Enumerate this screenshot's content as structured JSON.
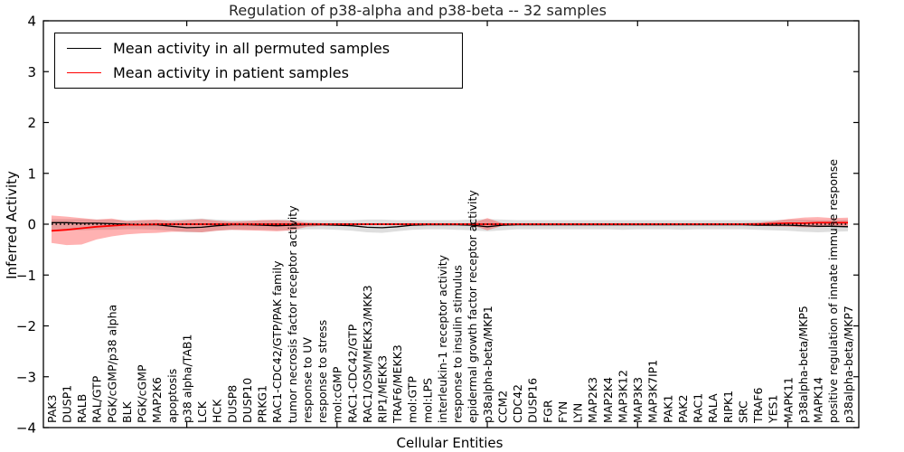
{
  "title": "Regulation of p38-alpha and p38-beta -- 32 samples",
  "legend": {
    "entries": [
      {
        "label": "Mean activity in all permuted samples",
        "color": "#000000"
      },
      {
        "label": "Mean activity in patient samples",
        "color": "#ff0000"
      }
    ]
  },
  "chart_data": {
    "type": "line",
    "title": "Regulation of p38-alpha and p38-beta -- 32 samples",
    "xlabel": "Cellular Entities",
    "ylabel": "Inferred Activity",
    "ylim": [
      -4,
      4
    ],
    "yticks": [
      4,
      3,
      2,
      1,
      0,
      -1,
      -2,
      -3,
      -4
    ],
    "xticks_major": [
      10,
      20,
      30,
      40,
      50
    ],
    "grid": false,
    "legend_position": "upper left",
    "zero_line": {
      "style": "dotted",
      "color": "#000000",
      "y": 0
    },
    "categories": [
      "PAK3",
      "DUSP1",
      "RALB",
      "RAL/GTP",
      "PGK/cGMP/p38 alpha",
      "BLK",
      "PGK/cGMP",
      "MAP2K6",
      "apoptosis",
      "p38 alpha/TAB1",
      "LCK",
      "HCK",
      "DUSP8",
      "DUSP10",
      "PRKG1",
      "RAC1-CDC42/GTP/PAK family",
      "tumor necrosis factor receptor activity",
      "response to UV",
      "response to stress",
      "mol:cGMP",
      "RAC1-CDC42/GTP",
      "RAC1/OSM/MEKK3/MKK3",
      "RIP1/MEKK3",
      "TRAF6/MEKK3",
      "mol:GTP",
      "mol:LPS",
      "interleukin-1 receptor activity",
      "response to insulin stimulus",
      "epidermal growth factor receptor activity",
      "p38alpha-beta/MKP1",
      "CCM2",
      "CDC42",
      "DUSP16",
      "FGR",
      "FYN",
      "LYN",
      "MAP2K3",
      "MAP2K4",
      "MAP3K12",
      "MAP3K3",
      "MAP3K7IP1",
      "PAK1",
      "PAK2",
      "RAC1",
      "RALA",
      "RIPK1",
      "SRC",
      "TRAF6",
      "YES1",
      "MAPK11",
      "p38alpha-beta/MKP5",
      "MAPK14",
      "positive regulation of innate immune response",
      "p38alpha-beta/MKP7"
    ],
    "series": [
      {
        "name": "Mean activity in all permuted samples",
        "slug": "permuted-mean-line",
        "color": "#000000",
        "values": [
          0.03,
          0.03,
          0.02,
          0.02,
          0.01,
          0.0,
          -0.01,
          -0.01,
          -0.04,
          -0.07,
          -0.06,
          -0.03,
          -0.01,
          -0.01,
          -0.02,
          -0.03,
          -0.02,
          -0.01,
          -0.01,
          -0.02,
          -0.03,
          -0.06,
          -0.07,
          -0.05,
          -0.02,
          -0.01,
          -0.01,
          -0.01,
          -0.02,
          -0.05,
          -0.02,
          -0.01,
          -0.01,
          -0.01,
          -0.01,
          -0.01,
          -0.01,
          -0.01,
          -0.01,
          -0.01,
          -0.01,
          -0.01,
          -0.01,
          -0.01,
          -0.01,
          -0.01,
          -0.01,
          -0.02,
          -0.02,
          -0.02,
          -0.03,
          -0.04,
          -0.04,
          -0.05
        ]
      },
      {
        "name": "Mean activity in patient samples",
        "slug": "patient-mean-line",
        "color": "#ff0000",
        "values": [
          -0.13,
          -0.11,
          -0.08,
          -0.05,
          -0.03,
          -0.01,
          -0.01,
          0,
          0,
          0,
          0,
          0,
          0,
          0,
          0,
          0,
          0,
          0,
          0,
          0,
          0,
          0,
          0,
          0,
          0,
          0,
          0,
          0,
          0,
          0,
          0,
          0,
          0,
          0,
          0,
          0,
          0,
          0,
          0,
          0,
          0,
          0,
          0,
          0,
          0,
          0,
          0,
          0,
          0.01,
          0.02,
          0.02,
          0.03,
          0.03,
          0.03
        ]
      }
    ],
    "bands": [
      {
        "name": "permuted-band-area",
        "color": "rgba(0,0,0,0.13)",
        "upper": [
          0.1,
          0.1,
          0.1,
          0.09,
          0.09,
          0.08,
          0.08,
          0.08,
          0.09,
          0.1,
          0.11,
          0.09,
          0.08,
          0.08,
          0.08,
          0.09,
          0.09,
          0.08,
          0.08,
          0.08,
          0.08,
          0.09,
          0.09,
          0.08,
          0.08,
          0.08,
          0.08,
          0.08,
          0.09,
          0.1,
          0.09,
          0.08,
          0.08,
          0.08,
          0.08,
          0.08,
          0.08,
          0.08,
          0.08,
          0.08,
          0.08,
          0.08,
          0.08,
          0.08,
          0.08,
          0.08,
          0.08,
          0.08,
          0.08,
          0.09,
          0.09,
          0.08,
          0.08,
          0.09
        ],
        "lower": [
          -0.12,
          -0.12,
          -0.12,
          -0.11,
          -0.11,
          -0.1,
          -0.1,
          -0.11,
          -0.13,
          -0.16,
          -0.16,
          -0.13,
          -0.11,
          -0.11,
          -0.11,
          -0.12,
          -0.12,
          -0.1,
          -0.1,
          -0.11,
          -0.13,
          -0.16,
          -0.17,
          -0.14,
          -0.11,
          -0.1,
          -0.1,
          -0.11,
          -0.12,
          -0.14,
          -0.12,
          -0.1,
          -0.1,
          -0.1,
          -0.1,
          -0.1,
          -0.1,
          -0.1,
          -0.11,
          -0.1,
          -0.1,
          -0.1,
          -0.11,
          -0.1,
          -0.1,
          -0.1,
          -0.1,
          -0.11,
          -0.12,
          -0.13,
          -0.15,
          -0.16,
          -0.15,
          -0.14
        ]
      },
      {
        "name": "patient-band-area",
        "color": "rgba(255,0,0,0.30)",
        "upper": [
          0.17,
          0.15,
          0.12,
          0.09,
          0.11,
          0.06,
          0.08,
          0.09,
          0.06,
          0.08,
          0.1,
          0.07,
          0.05,
          0.06,
          0.08,
          0.08,
          0.07,
          0.03,
          0.02,
          0.02,
          0.02,
          0.02,
          0.02,
          0.02,
          0.02,
          0.02,
          0.02,
          0.02,
          0.02,
          0.12,
          0.02,
          0.02,
          0.02,
          0.02,
          0.02,
          0.02,
          0.02,
          0.02,
          0.02,
          0.02,
          0.02,
          0.02,
          0.02,
          0.02,
          0.02,
          0.02,
          0.02,
          0.03,
          0.06,
          0.1,
          0.13,
          0.14,
          0.12,
          0.13
        ],
        "lower": [
          -0.37,
          -0.41,
          -0.4,
          -0.3,
          -0.24,
          -0.2,
          -0.18,
          -0.17,
          -0.15,
          -0.15,
          -0.16,
          -0.13,
          -0.11,
          -0.12,
          -0.13,
          -0.14,
          -0.12,
          -0.05,
          -0.03,
          -0.03,
          -0.02,
          -0.02,
          -0.02,
          -0.02,
          -0.02,
          -0.02,
          -0.02,
          -0.02,
          -0.02,
          -0.12,
          -0.03,
          -0.02,
          -0.02,
          -0.02,
          -0.02,
          -0.02,
          -0.02,
          -0.02,
          -0.02,
          -0.02,
          -0.02,
          -0.02,
          -0.02,
          -0.02,
          -0.02,
          -0.02,
          -0.02,
          -0.03,
          -0.04,
          -0.05,
          -0.06,
          -0.06,
          -0.05,
          -0.05
        ]
      }
    ]
  }
}
